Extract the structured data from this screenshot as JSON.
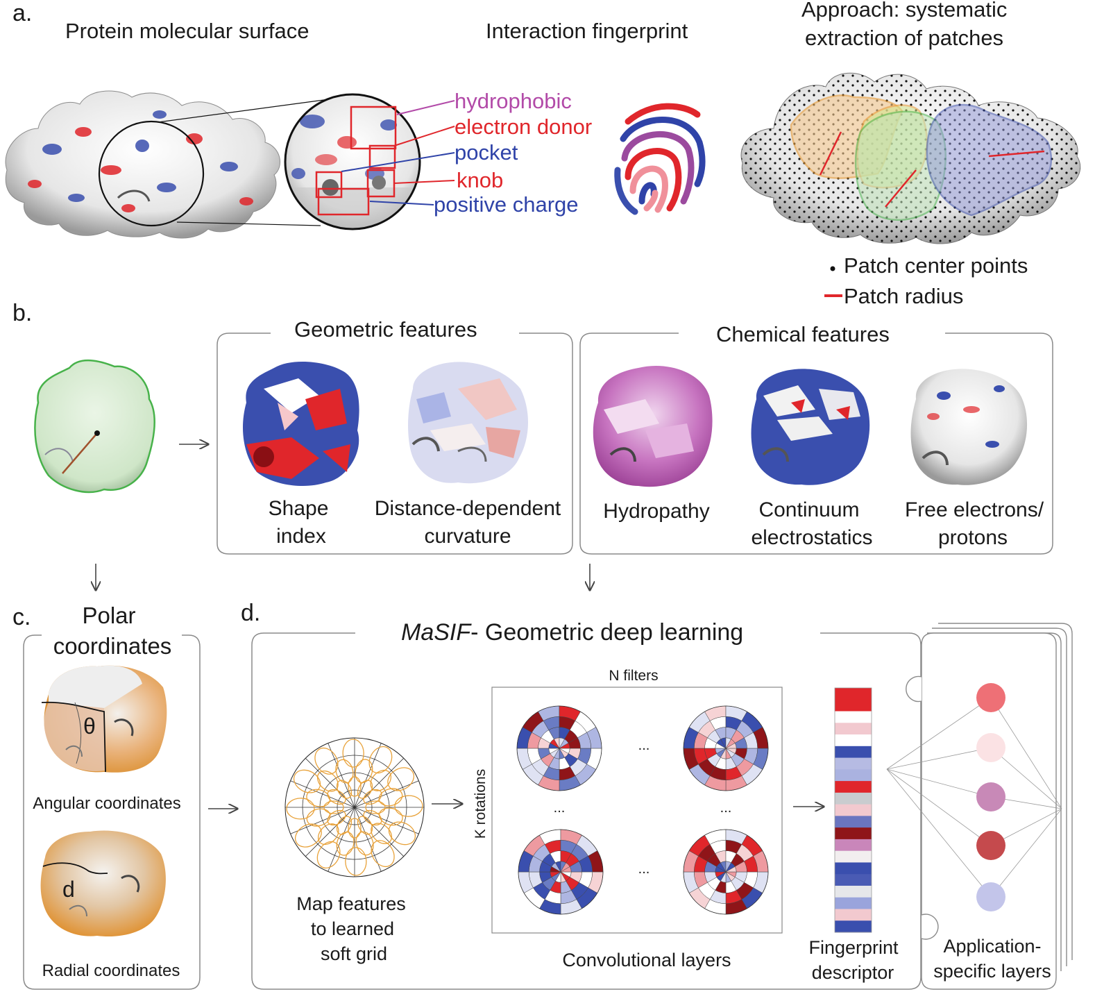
{
  "panels": {
    "a": {
      "label": "a.",
      "surface_title": "Protein molecular surface",
      "fingerprint_title": "Interaction fingerprint",
      "approach_title_1": "Approach: systematic",
      "approach_title_2": "extraction of patches",
      "zoom_labels": [
        {
          "text": "hydrophobic",
          "color": "#b24aa8"
        },
        {
          "text": "electron donor",
          "color": "#e0262b"
        },
        {
          "text": "pocket",
          "color": "#2f43a8"
        },
        {
          "text": "knob",
          "color": "#e0262b"
        },
        {
          "text": "positive charge",
          "color": "#2f43a8"
        }
      ],
      "legend_center": "Patch center points",
      "legend_radius": "Patch radius"
    },
    "b": {
      "label": "b.",
      "geometric_title": "Geometric features",
      "chemical_title": "Chemical features",
      "features": [
        {
          "line1": "Shape",
          "line2": "index"
        },
        {
          "line1": "Distance-dependent",
          "line2": "curvature"
        },
        {
          "line1": "Hydropathy",
          "line2": ""
        },
        {
          "line1": "Continuum",
          "line2": "electrostatics"
        },
        {
          "line1": "Free electrons/",
          "line2": "protons"
        }
      ]
    },
    "c": {
      "label": "c.",
      "title_1": "Polar",
      "title_2": "coordinates",
      "angular": "Angular coordinates",
      "radial": "Radial coordinates",
      "theta": "θ",
      "d": "d"
    },
    "d": {
      "label": "d.",
      "title_italic": "MaSIF",
      "title_rest": "- Geometric deep learning",
      "n_filters": "N filters",
      "k_rotations": "K rotations",
      "dots": "...",
      "map_1": "Map features",
      "map_2": "to learned",
      "map_3": "soft grid",
      "conv": "Convolutional layers",
      "fp_1": "Fingerprint",
      "fp_2": "descriptor",
      "app_1": "Application-",
      "app_2": "specific layers"
    }
  },
  "colors": {
    "red": "#e0262b",
    "blue": "#3a4fae",
    "purple": "#b24aa8",
    "orange": "#e8982f",
    "green": "#47b24a",
    "grid_orange": "#e8a23a"
  }
}
